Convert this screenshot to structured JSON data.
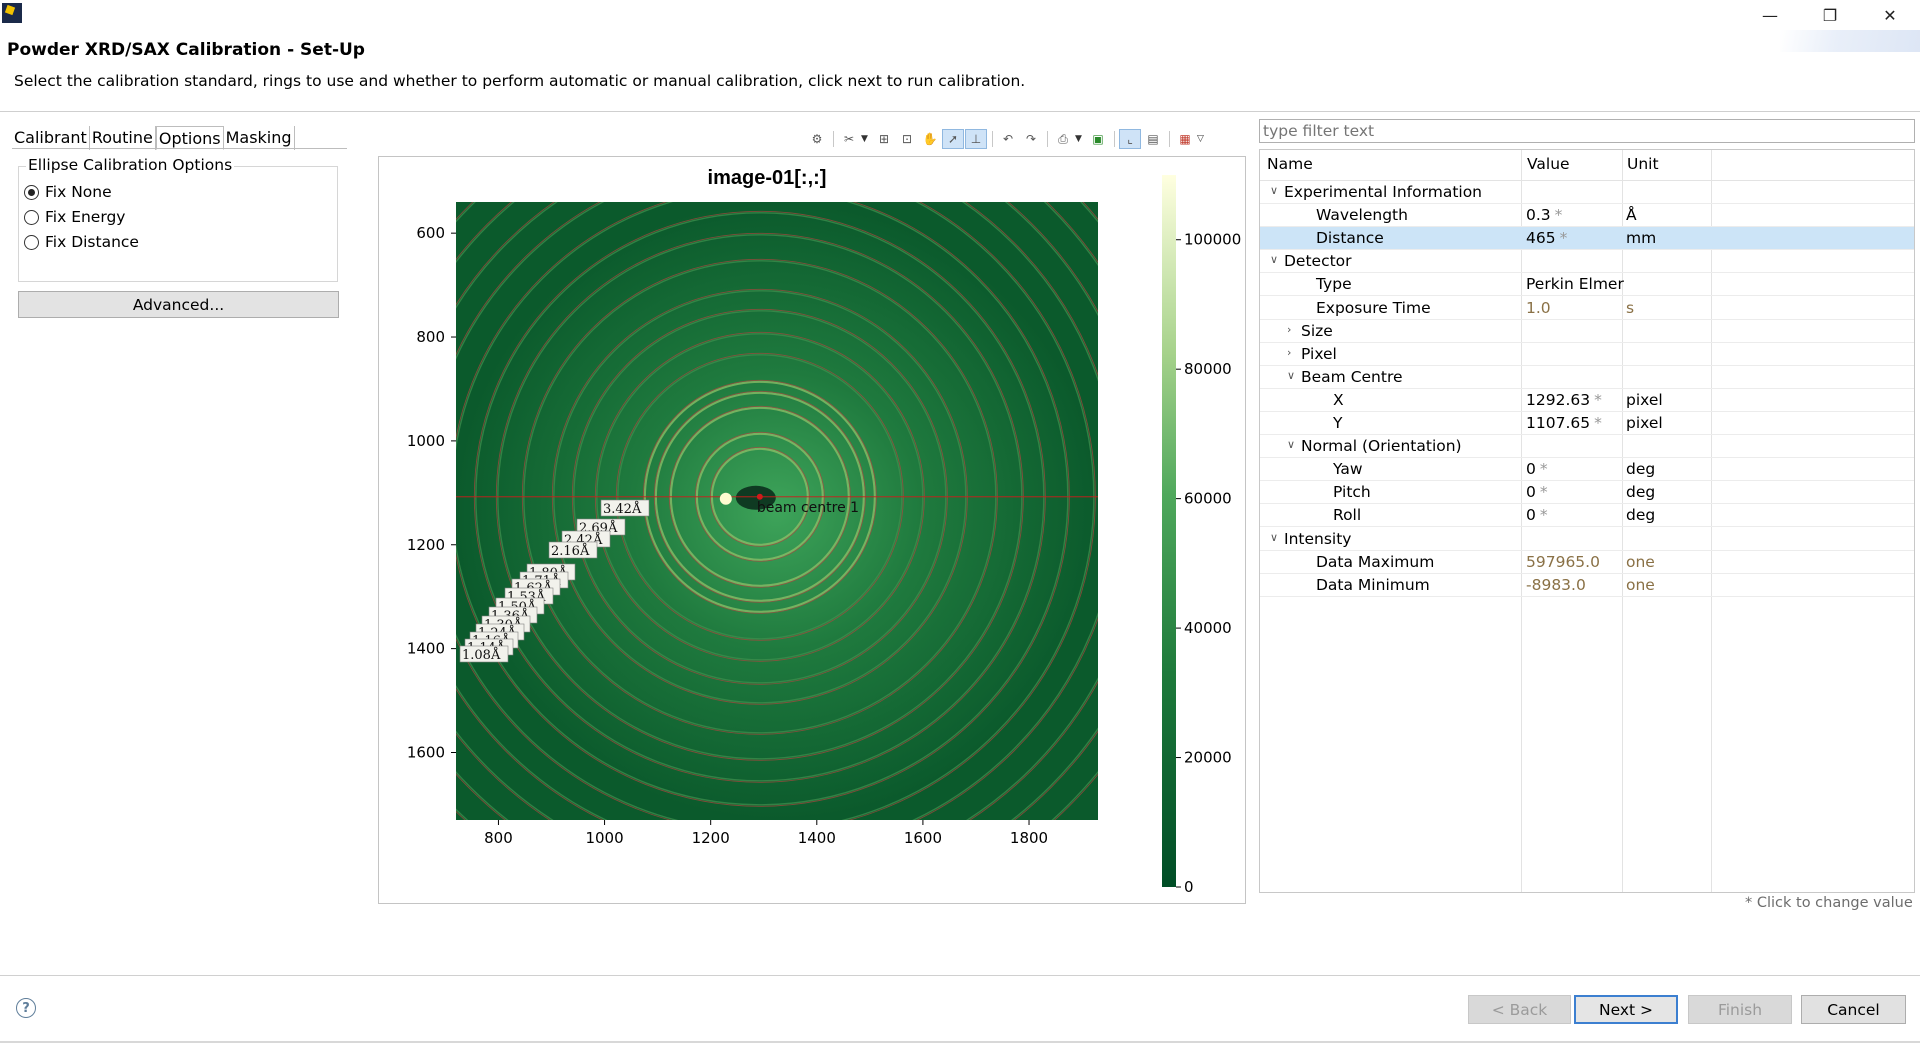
{
  "window": {
    "minimize_glyph": "—",
    "restore_glyph": "❐",
    "close_glyph": "✕"
  },
  "dialog": {
    "title": "Powder XRD/SAX Calibration - Set-Up",
    "description": "Select the calibration standard, rings to use and whether to perform automatic or manual calibration, click next to run calibration."
  },
  "tabs": [
    {
      "label": "Calibrant",
      "active": false
    },
    {
      "label": "Routine",
      "active": false
    },
    {
      "label": "Options",
      "active": true
    },
    {
      "label": "Masking",
      "active": false
    }
  ],
  "options": {
    "group_label": "Ellipse Calibration Options",
    "radios": [
      {
        "label": "Fix None",
        "checked": true
      },
      {
        "label": "Fix Energy",
        "checked": false
      },
      {
        "label": "Fix Distance",
        "checked": false
      }
    ],
    "advanced_label": "Advanced..."
  },
  "toolbar_icons": [
    "configure-icon",
    "tools-icon",
    "zoom-box-icon",
    "zoom-fit-icon",
    "pan-hand-icon",
    "select-pointer-icon",
    "axis-select-icon",
    "undo-icon",
    "redo-icon",
    "print-icon",
    "export-icon",
    "show-axes-icon",
    "aspect-icon",
    "colour-map-icon"
  ],
  "plot": {
    "title": "image-01[:,:]",
    "beam_label": "beam centre 1",
    "x_ticks": [
      "800",
      "1000",
      "1200",
      "1400",
      "1600",
      "1800"
    ],
    "y_ticks": [
      "600",
      "800",
      "1000",
      "1200",
      "1400",
      "1600"
    ],
    "colorbar_ticks": [
      "100000",
      "80000",
      "60000",
      "40000",
      "20000",
      "0"
    ],
    "ring_labels": [
      "3.42Å",
      "2.69Å",
      "2.42Å",
      "2.16Å",
      "1.80Å",
      "1.71Å",
      "1.62Å",
      "1.53Å",
      "1.50Å",
      "1.36Å",
      "1.30Å",
      "1.24Å",
      "1.16Å",
      "1.14Å",
      "1.08Å"
    ],
    "colors": {
      "low": "#004d26",
      "mid": "#2e8b45",
      "high": "#ffffe0",
      "ring": "#b0453f"
    }
  },
  "chart_data": {
    "type": "heatmap",
    "title": "image-01[:,:]",
    "x_range": [
      720,
      1930
    ],
    "y_range": [
      540,
      1730
    ],
    "x_ticks": [
      800,
      1000,
      1200,
      1400,
      1600,
      1800
    ],
    "y_ticks": [
      600,
      800,
      1000,
      1200,
      1400,
      1600
    ],
    "colorbar_range": [
      0,
      110000
    ],
    "colorbar_ticks": [
      0,
      20000,
      40000,
      60000,
      80000,
      100000
    ],
    "beam_centre": [
      1292.63,
      1107.65
    ],
    "ring_d_spacings": [
      "3.42Å",
      "2.69Å",
      "2.42Å",
      "2.16Å",
      "1.80Å",
      "1.71Å",
      "1.62Å",
      "1.53Å",
      "1.50Å",
      "1.36Å",
      "1.30Å",
      "1.24Å",
      "1.16Å",
      "1.14Å",
      "1.08Å"
    ]
  },
  "filter": {
    "placeholder": "type filter text"
  },
  "table": {
    "headers": [
      "Name",
      "Value",
      "Unit"
    ],
    "rows": [
      {
        "level": 0,
        "expander": "∨",
        "name": "Experimental Information",
        "value": "",
        "star": "",
        "unit": "",
        "readonly": false,
        "selected": false
      },
      {
        "level": 1,
        "expander": "",
        "name": "Wavelength",
        "value": "0.3",
        "star": "*",
        "unit": "Å",
        "readonly": false,
        "selected": false
      },
      {
        "level": 1,
        "expander": "",
        "name": "Distance",
        "value": "465",
        "star": "*",
        "unit": "mm",
        "readonly": false,
        "selected": true
      },
      {
        "level": 0,
        "expander": "∨",
        "name": "Detector",
        "value": "",
        "star": "",
        "unit": "",
        "readonly": false,
        "selected": false
      },
      {
        "level": 1,
        "expander": "",
        "name": "Type",
        "value": "Perkin Elmer",
        "star": "",
        "unit": "",
        "readonly": false,
        "selected": false
      },
      {
        "level": 1,
        "expander": "",
        "name": "Exposure Time",
        "value": "1.0",
        "star": "",
        "unit": "s",
        "readonly": true,
        "selected": false
      },
      {
        "level": 1,
        "expander": "›",
        "name": "Size",
        "value": "",
        "star": "",
        "unit": "",
        "readonly": false,
        "selected": false
      },
      {
        "level": 1,
        "expander": "›",
        "name": "Pixel",
        "value": "",
        "star": "",
        "unit": "",
        "readonly": false,
        "selected": false
      },
      {
        "level": 1,
        "expander": "∨",
        "name": "Beam Centre",
        "value": "",
        "star": "",
        "unit": "",
        "readonly": false,
        "selected": false
      },
      {
        "level": 2,
        "expander": "",
        "name": "X",
        "value": "1292.63",
        "star": "*",
        "unit": "pixel",
        "readonly": false,
        "selected": false
      },
      {
        "level": 2,
        "expander": "",
        "name": "Y",
        "value": "1107.65",
        "star": "*",
        "unit": "pixel",
        "readonly": false,
        "selected": false
      },
      {
        "level": 1,
        "expander": "∨",
        "name": "Normal (Orientation)",
        "value": "",
        "star": "",
        "unit": "",
        "readonly": false,
        "selected": false
      },
      {
        "level": 2,
        "expander": "",
        "name": "Yaw",
        "value": "0",
        "star": "*",
        "unit": "deg",
        "readonly": false,
        "selected": false
      },
      {
        "level": 2,
        "expander": "",
        "name": "Pitch",
        "value": "0",
        "star": "*",
        "unit": "deg",
        "readonly": false,
        "selected": false
      },
      {
        "level": 2,
        "expander": "",
        "name": "Roll",
        "value": "0",
        "star": "*",
        "unit": "deg",
        "readonly": false,
        "selected": false
      },
      {
        "level": 0,
        "expander": "∨",
        "name": "Intensity",
        "value": "",
        "star": "",
        "unit": "",
        "readonly": false,
        "selected": false
      },
      {
        "level": 1,
        "expander": "",
        "name": "Data Maximum",
        "value": "597965.0",
        "star": "",
        "unit": "one",
        "readonly": true,
        "selected": false
      },
      {
        "level": 1,
        "expander": "",
        "name": "Data Minimum",
        "value": "-8983.0",
        "star": "",
        "unit": "one",
        "readonly": true,
        "selected": false
      }
    ],
    "hint": "* Click to change value"
  },
  "buttons": {
    "help": "?",
    "back": "< Back",
    "next": "Next >",
    "finish": "Finish",
    "cancel": "Cancel"
  }
}
